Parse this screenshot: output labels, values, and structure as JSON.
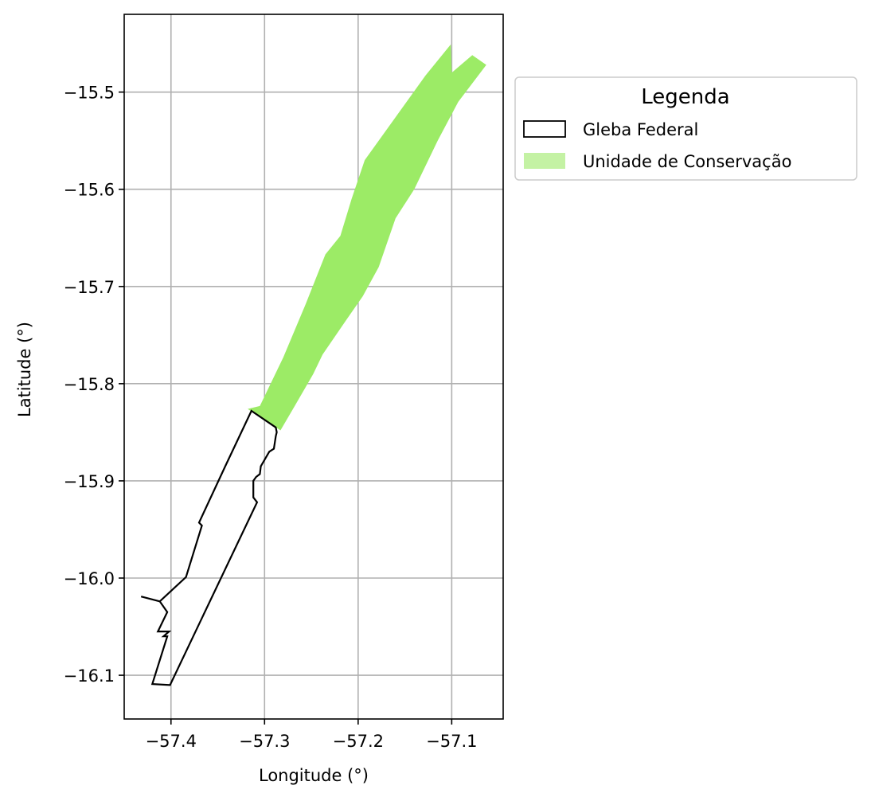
{
  "chart_data": {
    "type": "map",
    "xlabel": "Longitude (°)",
    "ylabel": "Latitude (°)",
    "xlim": [
      -57.45,
      -57.045
    ],
    "ylim": [
      -16.145,
      -15.42
    ],
    "x_ticks": [
      {
        "value": -57.4,
        "label": "−57.4"
      },
      {
        "value": -57.3,
        "label": "−57.3"
      },
      {
        "value": -57.2,
        "label": "−57.2"
      },
      {
        "value": -57.1,
        "label": "−57.1"
      }
    ],
    "y_ticks": [
      {
        "value": -15.5,
        "label": "−15.5"
      },
      {
        "value": -15.6,
        "label": "−15.6"
      },
      {
        "value": -15.7,
        "label": "−15.7"
      },
      {
        "value": -15.8,
        "label": "−15.8"
      },
      {
        "value": -15.9,
        "label": "−15.9"
      },
      {
        "value": -16.0,
        "label": "−16.0"
      },
      {
        "value": -16.1,
        "label": "−16.1"
      }
    ],
    "grid": true,
    "legend": {
      "title": "Legenda",
      "placement": "outside-right-top",
      "entries": [
        {
          "label": "Gleba Federal",
          "style": "outline",
          "color": "#000000"
        },
        {
          "label": "Unidade de Conservação",
          "style": "fill",
          "color": "#9ceb66"
        }
      ]
    },
    "layers": [
      {
        "name": "Gleba Federal",
        "style": "outline",
        "color": "#000000",
        "coordinates": [
          [
            -57.314,
            -15.828
          ],
          [
            -57.288,
            -15.845
          ],
          [
            -57.287,
            -15.85
          ],
          [
            -57.288,
            -15.854
          ],
          [
            -57.29,
            -15.867
          ],
          [
            -57.295,
            -15.87
          ],
          [
            -57.304,
            -15.885
          ],
          [
            -57.305,
            -15.893
          ],
          [
            -57.309,
            -15.896
          ],
          [
            -57.312,
            -15.9
          ],
          [
            -57.312,
            -15.917
          ],
          [
            -57.308,
            -15.922
          ],
          [
            -57.401,
            -16.11
          ],
          [
            -57.42,
            -16.109
          ],
          [
            -57.404,
            -16.06
          ],
          [
            -57.408,
            -16.06
          ],
          [
            -57.402,
            -16.055
          ],
          [
            -57.414,
            -16.055
          ],
          [
            -57.404,
            -16.035
          ],
          [
            -57.412,
            -16.024
          ],
          [
            -57.432,
            -16.019
          ],
          [
            -57.412,
            -16.024
          ],
          [
            -57.384,
            -15.999
          ],
          [
            -57.367,
            -15.946
          ],
          [
            -57.37,
            -15.943
          ],
          [
            -57.342,
            -15.885
          ]
        ]
      },
      {
        "name": "Unidade de Conservação",
        "style": "fill",
        "color": "#9ceb66",
        "coordinates": [
          [
            -57.101,
            -15.451
          ],
          [
            -57.128,
            -15.483
          ],
          [
            -57.193,
            -15.57
          ],
          [
            -57.207,
            -15.61
          ],
          [
            -57.219,
            -15.648
          ],
          [
            -57.235,
            -15.667
          ],
          [
            -57.256,
            -15.718
          ],
          [
            -57.28,
            -15.773
          ],
          [
            -57.305,
            -15.823
          ],
          [
            -57.318,
            -15.826
          ],
          [
            -57.283,
            -15.848
          ],
          [
            -57.266,
            -15.82
          ],
          [
            -57.248,
            -15.79
          ],
          [
            -57.238,
            -15.77
          ],
          [
            -57.213,
            -15.735
          ],
          [
            -57.195,
            -15.71
          ],
          [
            -57.178,
            -15.68
          ],
          [
            -57.16,
            -15.63
          ],
          [
            -57.14,
            -15.6
          ],
          [
            -57.115,
            -15.55
          ],
          [
            -57.093,
            -15.51
          ],
          [
            -57.063,
            -15.472
          ],
          [
            -57.078,
            -15.462
          ],
          [
            -57.1,
            -15.48
          ]
        ]
      }
    ]
  }
}
